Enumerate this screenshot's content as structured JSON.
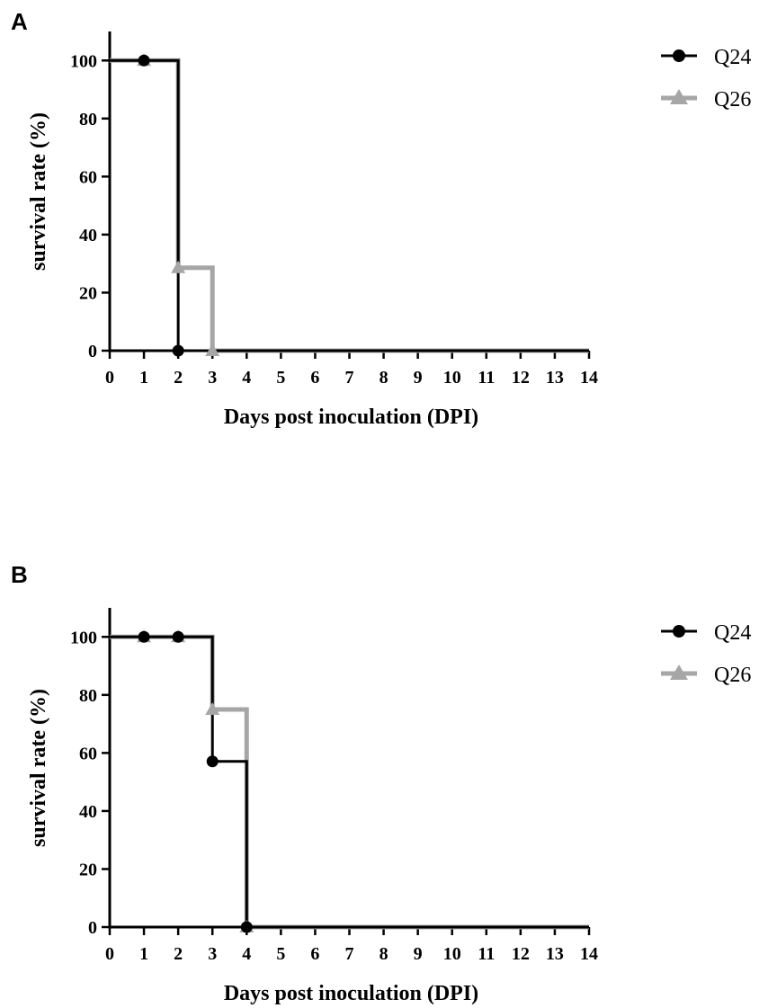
{
  "chart_data": [
    {
      "panel": "A",
      "type": "line",
      "step": true,
      "xlabel": "Days post inoculation (DPI)",
      "ylabel": "survival rate (%)",
      "xlim": [
        0,
        14
      ],
      "ylim": [
        0,
        110
      ],
      "xticks": [
        0,
        1,
        2,
        3,
        4,
        5,
        6,
        7,
        8,
        9,
        10,
        11,
        12,
        13,
        14
      ],
      "yticks": [
        0,
        20,
        40,
        60,
        80,
        100
      ],
      "grid": false,
      "legend": "right",
      "series": [
        {
          "name": "Q24",
          "color": "#000000",
          "marker": "circle",
          "x": [
            0,
            1,
            2
          ],
          "y": [
            100,
            100,
            0
          ]
        },
        {
          "name": "Q26",
          "color": "#a6a6a6",
          "marker": "triangle",
          "x": [
            0,
            1,
            2,
            3
          ],
          "y": [
            100,
            100,
            28.6,
            0
          ]
        }
      ]
    },
    {
      "panel": "B",
      "type": "line",
      "step": true,
      "xlabel": "Days post inoculation (DPI)",
      "ylabel": "survival rate (%)",
      "xlim": [
        0,
        14
      ],
      "ylim": [
        0,
        110
      ],
      "xticks": [
        0,
        1,
        2,
        3,
        4,
        5,
        6,
        7,
        8,
        9,
        10,
        11,
        12,
        13,
        14
      ],
      "yticks": [
        0,
        20,
        40,
        60,
        80,
        100
      ],
      "grid": false,
      "legend": "right",
      "series": [
        {
          "name": "Q24",
          "color": "#000000",
          "marker": "circle",
          "x": [
            0,
            1,
            2,
            3,
            4
          ],
          "y": [
            100,
            100,
            100,
            57.1,
            0
          ]
        },
        {
          "name": "Q26",
          "color": "#a6a6a6",
          "marker": "triangle",
          "x": [
            0,
            1,
            2,
            3,
            4
          ],
          "y": [
            100,
            100,
            100,
            75,
            0
          ]
        }
      ]
    }
  ]
}
